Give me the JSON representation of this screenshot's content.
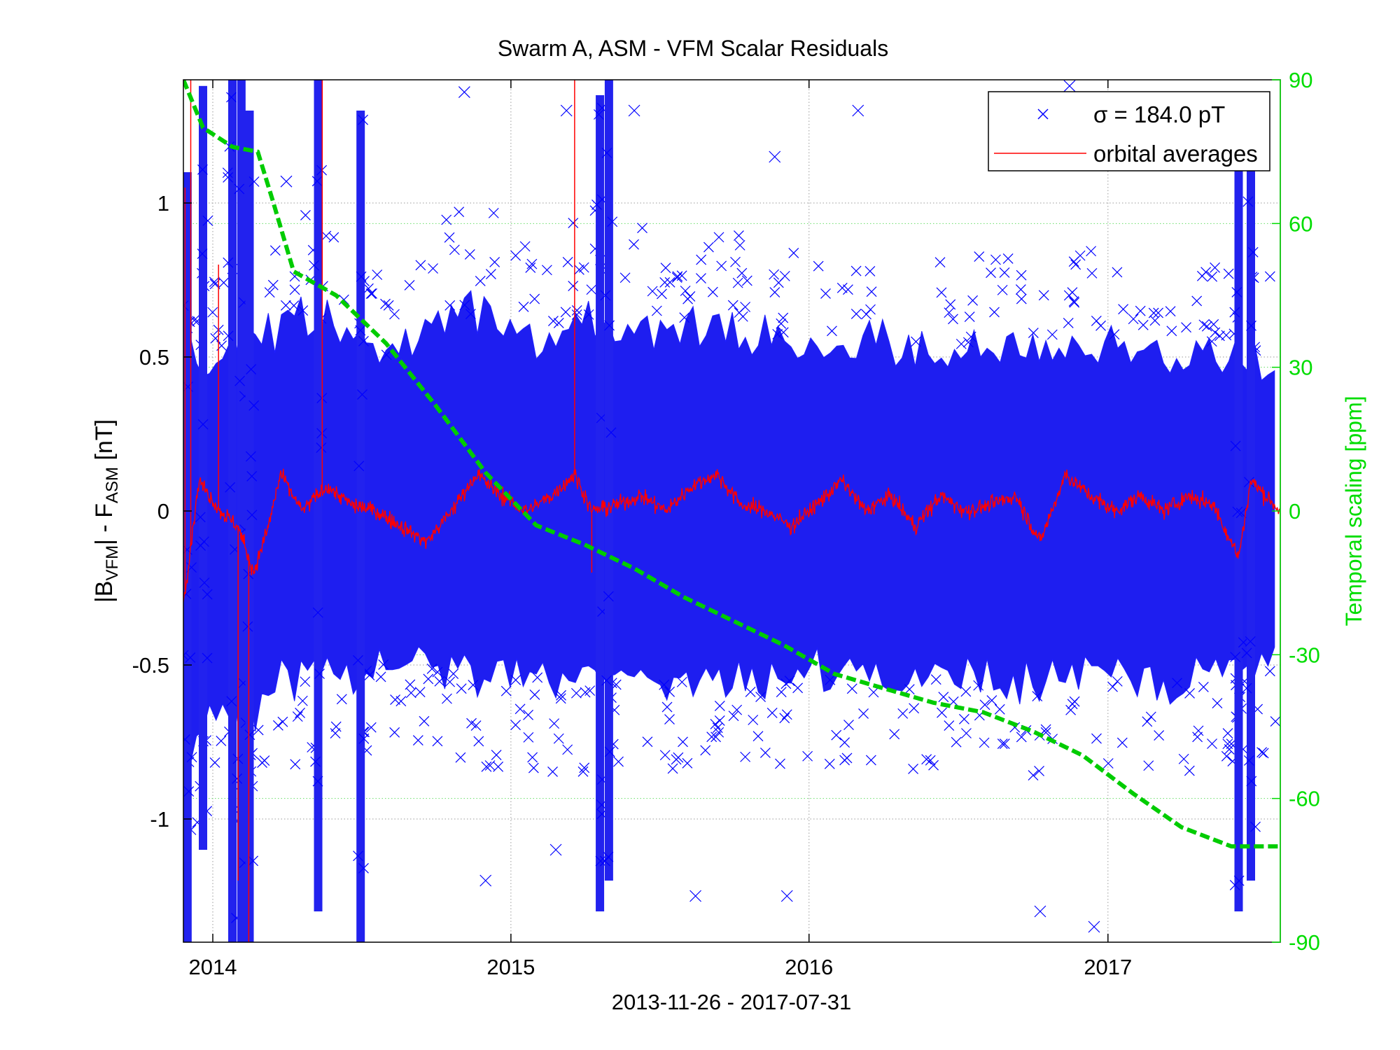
{
  "chart_data": {
    "type": "scatter",
    "title": "Swarm A, ASM - VFM Scalar Residuals",
    "xlabel": "2013-11-26 - 2017-07-31",
    "ylabel": {
      "base1": "|B",
      "sub1": "VFM",
      "mid": "| - F",
      "sub2": "ASM",
      "unit": " [nT]"
    },
    "y2label": "Temporal scaling [ppm]",
    "x_axis": {
      "range": [
        "2013-11-26",
        "2017-07-31"
      ],
      "ticks": [
        {
          "date": "2014-01-01",
          "label": "2014"
        },
        {
          "date": "2015-01-01",
          "label": "2015"
        },
        {
          "date": "2016-01-01",
          "label": "2016"
        },
        {
          "date": "2017-01-01",
          "label": "2017"
        }
      ]
    },
    "y_left": {
      "range": [
        -1.4,
        1.4
      ],
      "ticks": [
        {
          "value": 1,
          "label": "1"
        },
        {
          "value": 0.5,
          "label": "0.5"
        },
        {
          "value": 0,
          "label": "0"
        },
        {
          "value": -0.5,
          "label": "-0.5"
        },
        {
          "value": -1,
          "label": "-1"
        }
      ]
    },
    "y_right": {
      "range": [
        -90,
        90
      ],
      "ticks": [
        {
          "value": 90,
          "label": "90"
        },
        {
          "value": 60,
          "label": "60"
        },
        {
          "value": 30,
          "label": "30"
        },
        {
          "value": 0,
          "label": "0"
        },
        {
          "value": -30,
          "label": "-30"
        },
        {
          "value": -60,
          "label": "-60"
        },
        {
          "value": -90,
          "label": "-90"
        }
      ]
    },
    "grid": true,
    "legend": {
      "position": "top-right",
      "entries": [
        {
          "label": "σ = 184.0 pT",
          "marker": "x",
          "color": "#0000ff"
        },
        {
          "label": "orbital averages",
          "marker": "line",
          "color": "#ff0000"
        }
      ]
    },
    "colors": {
      "residuals": "#0000ff",
      "orbital_averages": "#ff0000",
      "temporal_scaling": "#00cc00",
      "right_axis": "#00dd00"
    },
    "series": [
      {
        "name": "σ = 184.0 pT",
        "kind": "scatter",
        "axis": "left",
        "spread_envelope": [
          {
            "date": "2013-11-26",
            "hi": 0.6,
            "lo": -0.9
          },
          {
            "date": "2014-01-15",
            "hi": 0.55,
            "lo": -0.75
          },
          {
            "date": "2014-03-01",
            "hi": 0.62,
            "lo": -0.7
          },
          {
            "date": "2014-04-15",
            "hi": 0.7,
            "lo": -0.6
          },
          {
            "date": "2014-06-01",
            "hi": 0.65,
            "lo": -0.6
          },
          {
            "date": "2014-08-01",
            "hi": 0.55,
            "lo": -0.55
          },
          {
            "date": "2014-10-01",
            "hi": 0.68,
            "lo": -0.55
          },
          {
            "date": "2014-12-01",
            "hi": 0.72,
            "lo": -0.6
          },
          {
            "date": "2015-02-01",
            "hi": 0.6,
            "lo": -0.6
          },
          {
            "date": "2015-04-01",
            "hi": 0.7,
            "lo": -0.62
          },
          {
            "date": "2015-07-01",
            "hi": 0.68,
            "lo": -0.6
          },
          {
            "date": "2015-10-01",
            "hi": 0.65,
            "lo": -0.6
          },
          {
            "date": "2016-01-01",
            "hi": 0.6,
            "lo": -0.6
          },
          {
            "date": "2016-04-01",
            "hi": 0.62,
            "lo": -0.62
          },
          {
            "date": "2016-07-01",
            "hi": 0.58,
            "lo": -0.6
          },
          {
            "date": "2016-10-01",
            "hi": 0.62,
            "lo": -0.62
          },
          {
            "date": "2017-01-01",
            "hi": 0.6,
            "lo": -0.6
          },
          {
            "date": "2017-04-01",
            "hi": 0.58,
            "lo": -0.62
          },
          {
            "date": "2017-07-31",
            "hi": 0.55,
            "lo": -0.55
          }
        ],
        "spikes": [
          {
            "date": "2013-12-01",
            "hi": 1.1,
            "lo": -1.4
          },
          {
            "date": "2013-12-20",
            "hi": 1.38,
            "lo": -1.1
          },
          {
            "date": "2014-01-25",
            "hi": 1.4,
            "lo": -1.4
          },
          {
            "date": "2014-02-05",
            "hi": 1.4,
            "lo": -1.4
          },
          {
            "date": "2014-02-15",
            "hi": 1.3,
            "lo": -1.4
          },
          {
            "date": "2014-05-10",
            "hi": 1.4,
            "lo": -1.3
          },
          {
            "date": "2014-07-01",
            "hi": 1.3,
            "lo": -1.4
          },
          {
            "date": "2015-04-20",
            "hi": 1.35,
            "lo": -1.3
          },
          {
            "date": "2015-05-01",
            "hi": 1.4,
            "lo": -1.2
          },
          {
            "date": "2017-06-10",
            "hi": 1.3,
            "lo": -1.3
          },
          {
            "date": "2017-06-25",
            "hi": 1.2,
            "lo": -1.2
          }
        ],
        "outliers": [
          {
            "date": "2015-03-10",
            "value": 1.3
          },
          {
            "date": "2015-06-01",
            "value": 1.3
          },
          {
            "date": "2015-11-20",
            "value": 1.15
          },
          {
            "date": "2016-03-01",
            "value": 1.3
          },
          {
            "date": "2016-11-15",
            "value": 1.38
          },
          {
            "date": "2017-03-01",
            "value": 1.3
          },
          {
            "date": "2014-04-01",
            "value": 1.07
          },
          {
            "date": "2014-11-05",
            "value": 1.36
          },
          {
            "date": "2015-02-25",
            "value": -1.1
          },
          {
            "date": "2015-08-15",
            "value": -1.25
          },
          {
            "date": "2016-12-15",
            "value": -1.35
          },
          {
            "date": "2016-10-10",
            "value": -1.3
          },
          {
            "date": "2015-12-05",
            "value": -1.25
          },
          {
            "date": "2014-12-01",
            "value": -1.2
          }
        ]
      },
      {
        "name": "orbital averages",
        "kind": "line",
        "axis": "left",
        "points": [
          {
            "date": "2013-11-26",
            "value": -0.3
          },
          {
            "date": "2013-12-15",
            "value": 0.1
          },
          {
            "date": "2014-01-10",
            "value": 0.0
          },
          {
            "date": "2014-02-01",
            "value": -0.05
          },
          {
            "date": "2014-02-20",
            "value": -0.2
          },
          {
            "date": "2014-03-10",
            "value": -0.05
          },
          {
            "date": "2014-03-25",
            "value": 0.12
          },
          {
            "date": "2014-04-20",
            "value": 0.0
          },
          {
            "date": "2014-05-20",
            "value": 0.08
          },
          {
            "date": "2014-06-20",
            "value": 0.02
          },
          {
            "date": "2014-07-20",
            "value": 0.0
          },
          {
            "date": "2014-08-20",
            "value": -0.05
          },
          {
            "date": "2014-09-20",
            "value": -0.1
          },
          {
            "date": "2014-10-20",
            "value": 0.0
          },
          {
            "date": "2014-11-20",
            "value": 0.12
          },
          {
            "date": "2014-12-20",
            "value": 0.05
          },
          {
            "date": "2015-01-20",
            "value": 0.0
          },
          {
            "date": "2015-02-20",
            "value": 0.05
          },
          {
            "date": "2015-03-20",
            "value": 0.12
          },
          {
            "date": "2015-04-10",
            "value": 0.0
          },
          {
            "date": "2015-05-10",
            "value": 0.02
          },
          {
            "date": "2015-06-10",
            "value": 0.05
          },
          {
            "date": "2015-07-10",
            "value": 0.0
          },
          {
            "date": "2015-08-10",
            "value": 0.08
          },
          {
            "date": "2015-09-10",
            "value": 0.12
          },
          {
            "date": "2015-10-10",
            "value": 0.02
          },
          {
            "date": "2015-11-10",
            "value": 0.0
          },
          {
            "date": "2015-12-10",
            "value": -0.05
          },
          {
            "date": "2016-01-10",
            "value": 0.02
          },
          {
            "date": "2016-02-10",
            "value": 0.1
          },
          {
            "date": "2016-03-10",
            "value": 0.0
          },
          {
            "date": "2016-04-10",
            "value": 0.05
          },
          {
            "date": "2016-05-10",
            "value": -0.05
          },
          {
            "date": "2016-06-10",
            "value": 0.05
          },
          {
            "date": "2016-07-10",
            "value": 0.0
          },
          {
            "date": "2016-08-10",
            "value": 0.02
          },
          {
            "date": "2016-09-10",
            "value": 0.05
          },
          {
            "date": "2016-10-10",
            "value": -0.1
          },
          {
            "date": "2016-11-10",
            "value": 0.12
          },
          {
            "date": "2016-12-10",
            "value": 0.05
          },
          {
            "date": "2017-01-10",
            "value": 0.0
          },
          {
            "date": "2017-02-10",
            "value": 0.05
          },
          {
            "date": "2017-03-10",
            "value": 0.0
          },
          {
            "date": "2017-04-10",
            "value": 0.05
          },
          {
            "date": "2017-05-10",
            "value": 0.02
          },
          {
            "date": "2017-06-10",
            "value": -0.15
          },
          {
            "date": "2017-06-25",
            "value": 0.1
          },
          {
            "date": "2017-07-31",
            "value": 0.0
          }
        ],
        "spikes": [
          {
            "date": "2013-11-28",
            "value": 1.05
          },
          {
            "date": "2013-12-05",
            "value": 1.4
          },
          {
            "date": "2014-01-08",
            "value": 0.8
          },
          {
            "date": "2014-02-01",
            "value": -1.2
          },
          {
            "date": "2014-02-14",
            "value": -1.4
          },
          {
            "date": "2014-05-15",
            "value": 1.4
          },
          {
            "date": "2015-03-20",
            "value": 1.4
          },
          {
            "date": "2015-04-10",
            "value": -0.2
          }
        ]
      },
      {
        "name": "Temporal scaling",
        "kind": "line",
        "style": "dashed",
        "axis": "right",
        "points": [
          {
            "date": "2013-11-26",
            "value": 90
          },
          {
            "date": "2013-12-20",
            "value": 80
          },
          {
            "date": "2014-01-25",
            "value": 76
          },
          {
            "date": "2014-02-25",
            "value": 75
          },
          {
            "date": "2014-03-15",
            "value": 65
          },
          {
            "date": "2014-04-10",
            "value": 50
          },
          {
            "date": "2014-06-01",
            "value": 45
          },
          {
            "date": "2014-08-01",
            "value": 35
          },
          {
            "date": "2014-10-01",
            "value": 22
          },
          {
            "date": "2014-12-01",
            "value": 8
          },
          {
            "date": "2015-02-01",
            "value": -3
          },
          {
            "date": "2015-04-01",
            "value": -7
          },
          {
            "date": "2015-06-01",
            "value": -12
          },
          {
            "date": "2015-08-01",
            "value": -18
          },
          {
            "date": "2015-10-01",
            "value": -23
          },
          {
            "date": "2015-12-01",
            "value": -28
          },
          {
            "date": "2016-02-01",
            "value": -34
          },
          {
            "date": "2016-04-01",
            "value": -37
          },
          {
            "date": "2016-06-01",
            "value": -40
          },
          {
            "date": "2016-08-01",
            "value": -42
          },
          {
            "date": "2016-10-01",
            "value": -46
          },
          {
            "date": "2016-12-01",
            "value": -51
          },
          {
            "date": "2017-02-01",
            "value": -59
          },
          {
            "date": "2017-04-01",
            "value": -66
          },
          {
            "date": "2017-06-01",
            "value": -70
          },
          {
            "date": "2017-07-31",
            "value": -70
          }
        ]
      }
    ]
  }
}
